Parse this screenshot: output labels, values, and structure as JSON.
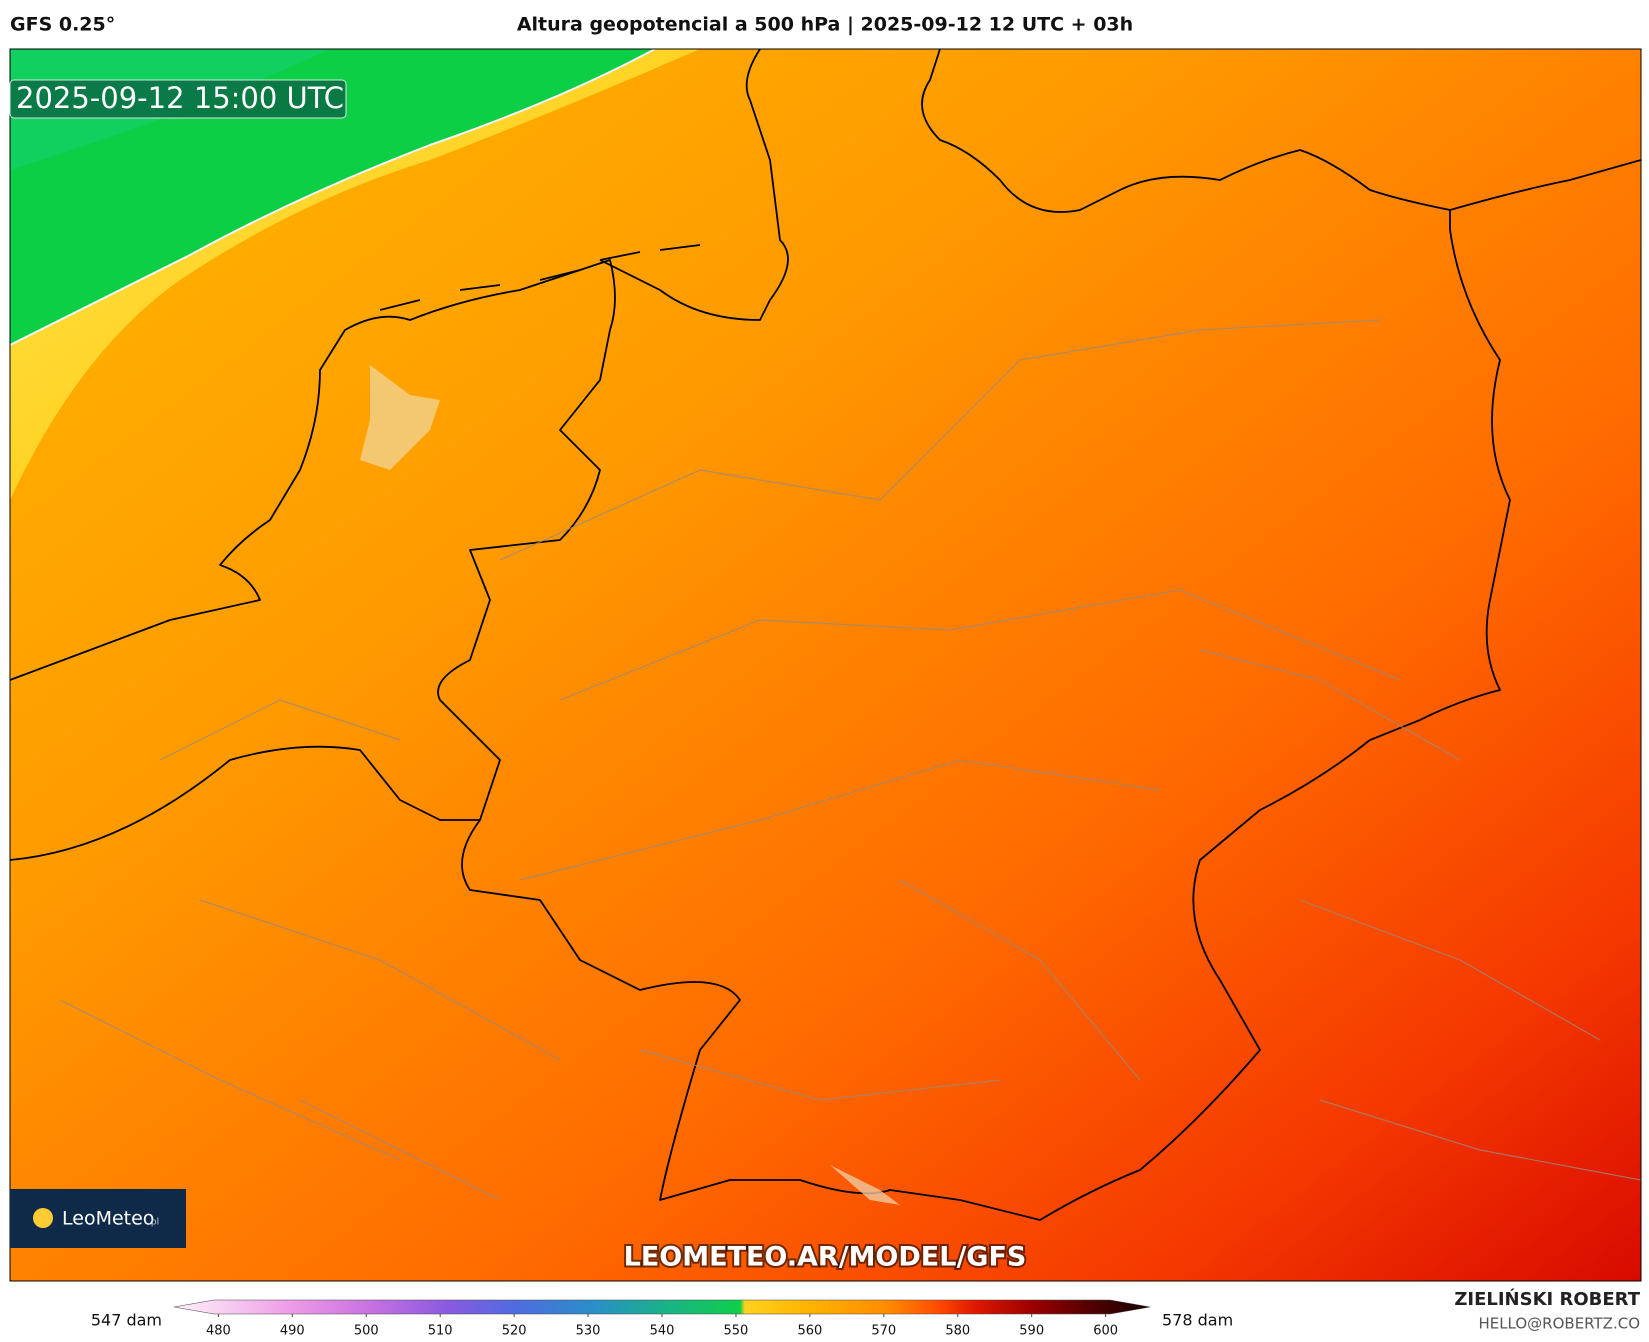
{
  "header": {
    "model": "GFS 0.25°",
    "title": "Altura geopotencial a 500 hPa | 2025-09-12 12 UTC + 03h"
  },
  "map": {
    "valid_time": "2025-09-12 15:00 UTC",
    "watermark": "LEOMETEO.AR/MODEL/GFS",
    "logo": "LeoMeteo",
    "logo_suffix": ".pl"
  },
  "colorbar": {
    "min_label": "547 dam",
    "max_label": "578 dam",
    "lim": [
      474,
      606
    ],
    "ticks": [
      480,
      490,
      500,
      510,
      520,
      530,
      540,
      550,
      560,
      570,
      580,
      590,
      600
    ]
  },
  "credit": {
    "name": "ZIELIŃSKI ROBERT",
    "email": "HELLO@ROBERTZ.CO"
  }
}
